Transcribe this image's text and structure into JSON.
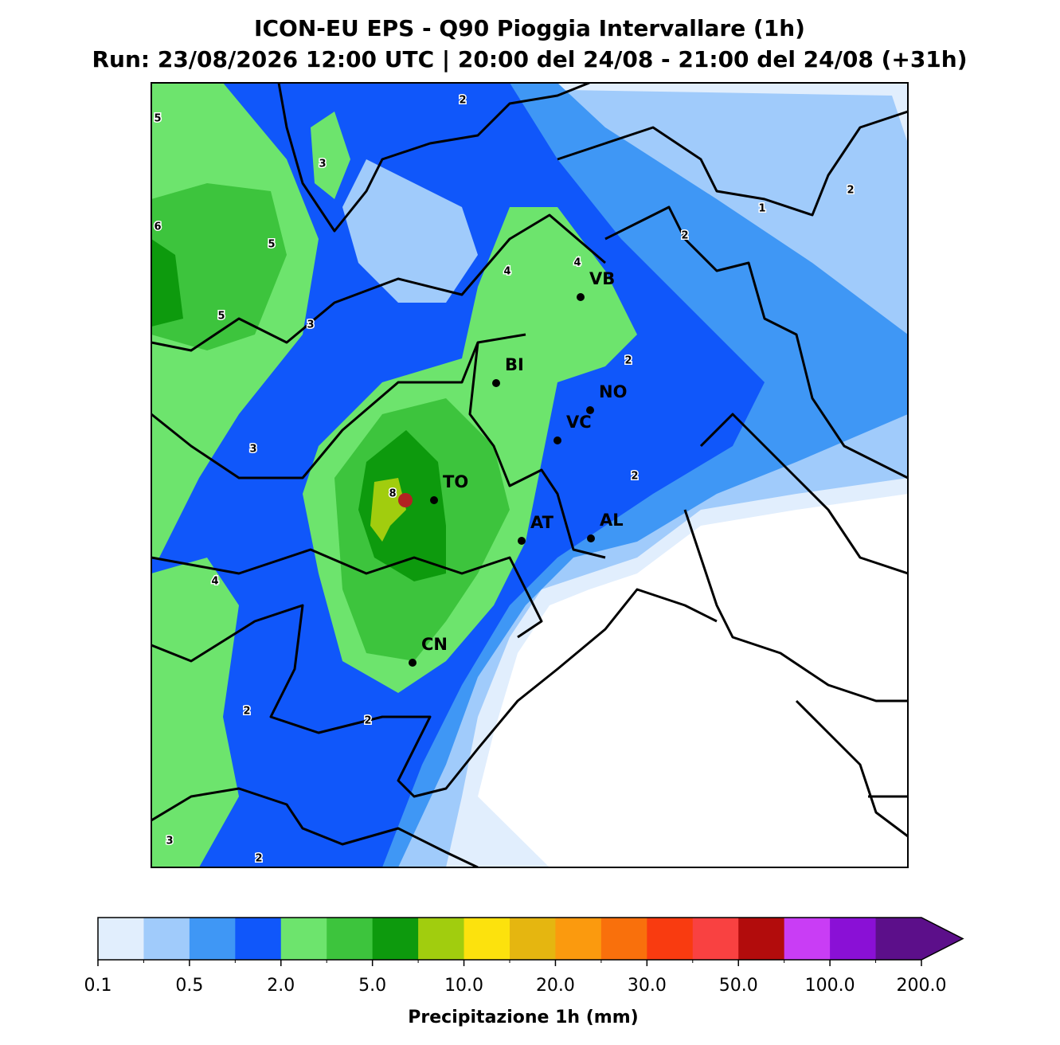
{
  "chart_data": {
    "type": "map",
    "title": "ICON-EU EPS - Q90 Pioggia Intervallare (1h)",
    "subtitle": "Run: 23/08/2026 12:00 UTC | 20:00 del 24/08 - 21:00 del 24/08 (+31h)",
    "cities": [
      "VB",
      "BI",
      "NO",
      "VC",
      "TO",
      "AT",
      "AL",
      "CN"
    ],
    "contour_labels": [
      "2",
      "5",
      "3",
      "1",
      "2",
      "6",
      "5",
      "2",
      "4",
      "4",
      "5",
      "3",
      "2",
      "3",
      "2",
      "8",
      "4",
      "2",
      "2",
      "3",
      "2"
    ],
    "colorbar": {
      "label": "Precipitazione 1h (mm)",
      "colors": [
        "#e1eefd",
        "#a0cbfb",
        "#3f97f5",
        "#1057fa",
        "#6de46d",
        "#3dc43d",
        "#0d9a0d",
        "#a1cd0e",
        "#fce20d",
        "#e5b610",
        "#fb9a0e",
        "#f9700c",
        "#f93b10",
        "#f94141",
        "#b20c0c",
        "#c93df5",
        "#8a10d6",
        "#5c0f8a"
      ],
      "ticks": [
        {
          "value": 0.1,
          "label": "0.1"
        },
        {
          "value": 0.5,
          "label": "0.5"
        },
        {
          "value": 2,
          "label": "2.0"
        },
        {
          "value": 5,
          "label": "5.0"
        },
        {
          "value": 10,
          "label": "10.0"
        },
        {
          "value": 20,
          "label": "20.0"
        },
        {
          "value": 30,
          "label": "30.0"
        },
        {
          "value": 50,
          "label": "50.0"
        },
        {
          "value": 100,
          "label": "100.0"
        },
        {
          "value": 200,
          "label": "200.0"
        }
      ]
    }
  }
}
